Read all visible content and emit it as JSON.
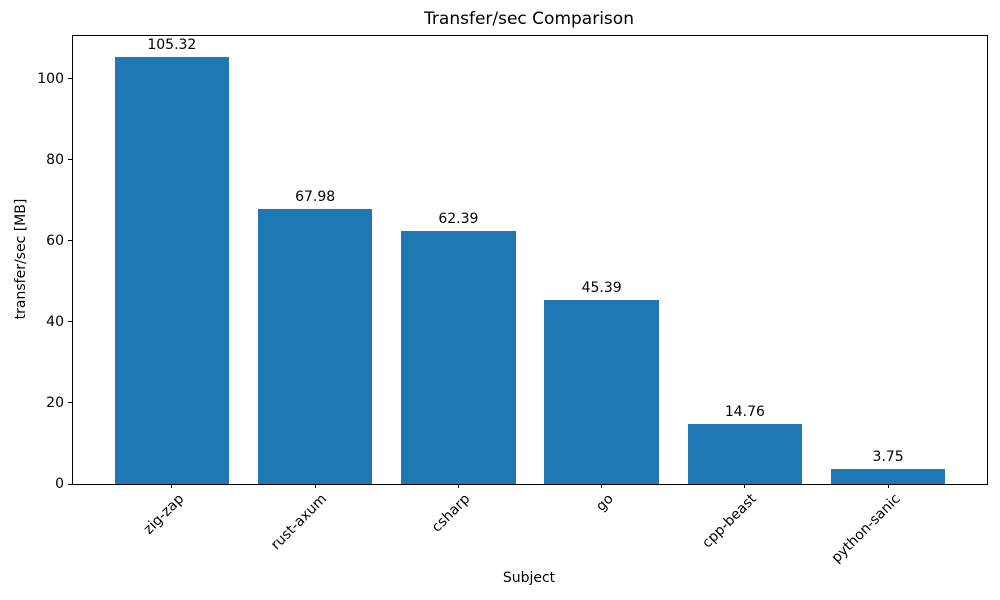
{
  "figure": {
    "title": "Transfer/sec Comparison",
    "xlabel": "Subject",
    "ylabel": "transfer/sec [MB]"
  },
  "chart_data": {
    "type": "bar",
    "title": "Transfer/sec Comparison",
    "xlabel": "Subject",
    "ylabel": "transfer/sec [MB]",
    "categories": [
      "zig-zap",
      "rust-axum",
      "csharp",
      "go",
      "cpp-beast",
      "python-sanic"
    ],
    "values": [
      105.32,
      67.98,
      62.39,
      45.39,
      14.76,
      3.75
    ],
    "value_labels": [
      "105.32",
      "67.98",
      "62.39",
      "45.39",
      "14.76",
      "3.75"
    ],
    "bar_color": "#1f77b4",
    "yticks": [
      0,
      20,
      40,
      60,
      80,
      100
    ],
    "ytick_labels": [
      "0",
      "20",
      "40",
      "60",
      "80",
      "100"
    ],
    "ylim": [
      0,
      110.6
    ],
    "xlim_categories": [
      -0.69,
      5.69
    ],
    "bar_width_fraction": 0.8,
    "xtick_rotation_deg": 45,
    "grid": false,
    "legend": null
  }
}
